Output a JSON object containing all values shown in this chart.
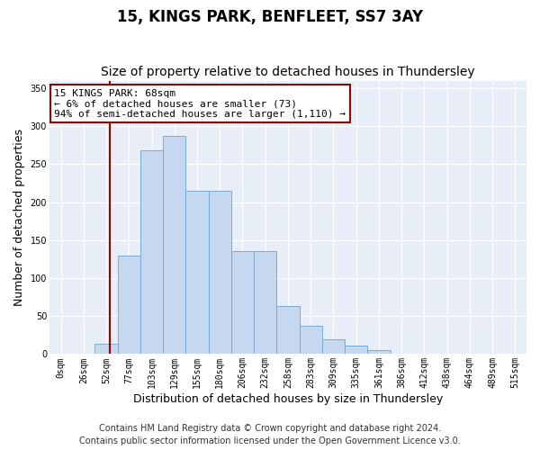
{
  "title": "15, KINGS PARK, BENFLEET, SS7 3AY",
  "subtitle": "Size of property relative to detached houses in Thundersley",
  "xlabel": "Distribution of detached houses by size in Thundersley",
  "ylabel": "Number of detached properties",
  "categories": [
    "0sqm",
    "26sqm",
    "52sqm",
    "77sqm",
    "103sqm",
    "129sqm",
    "155sqm",
    "180sqm",
    "206sqm",
    "232sqm",
    "258sqm",
    "283sqm",
    "309sqm",
    "335sqm",
    "361sqm",
    "386sqm",
    "412sqm",
    "438sqm",
    "464sqm",
    "489sqm",
    "515sqm"
  ],
  "values": [
    0,
    0,
    13,
    130,
    268,
    287,
    215,
    215,
    135,
    135,
    63,
    37,
    20,
    11,
    5,
    1,
    0,
    0,
    0,
    0,
    0
  ],
  "bar_color": "#c5d8ef",
  "bar_edge_color": "#7aaad4",
  "bar_width": 1.0,
  "vline_color": "#990000",
  "annotation_text": "15 KINGS PARK: 68sqm\n← 6% of detached houses are smaller (73)\n94% of semi-detached houses are larger (1,110) →",
  "annotation_box_color": "#ffffff",
  "annotation_box_edgecolor": "#990000",
  "ylim": [
    0,
    360
  ],
  "yticks": [
    0,
    50,
    100,
    150,
    200,
    250,
    300,
    350
  ],
  "bg_color": "#e8eef8",
  "grid_color": "#ffffff",
  "footer1": "Contains HM Land Registry data © Crown copyright and database right 2024.",
  "footer2": "Contains public sector information licensed under the Open Government Licence v3.0.",
  "title_fontsize": 12,
  "subtitle_fontsize": 10,
  "tick_fontsize": 7,
  "label_fontsize": 9,
  "annotation_fontsize": 8,
  "footer_fontsize": 7
}
